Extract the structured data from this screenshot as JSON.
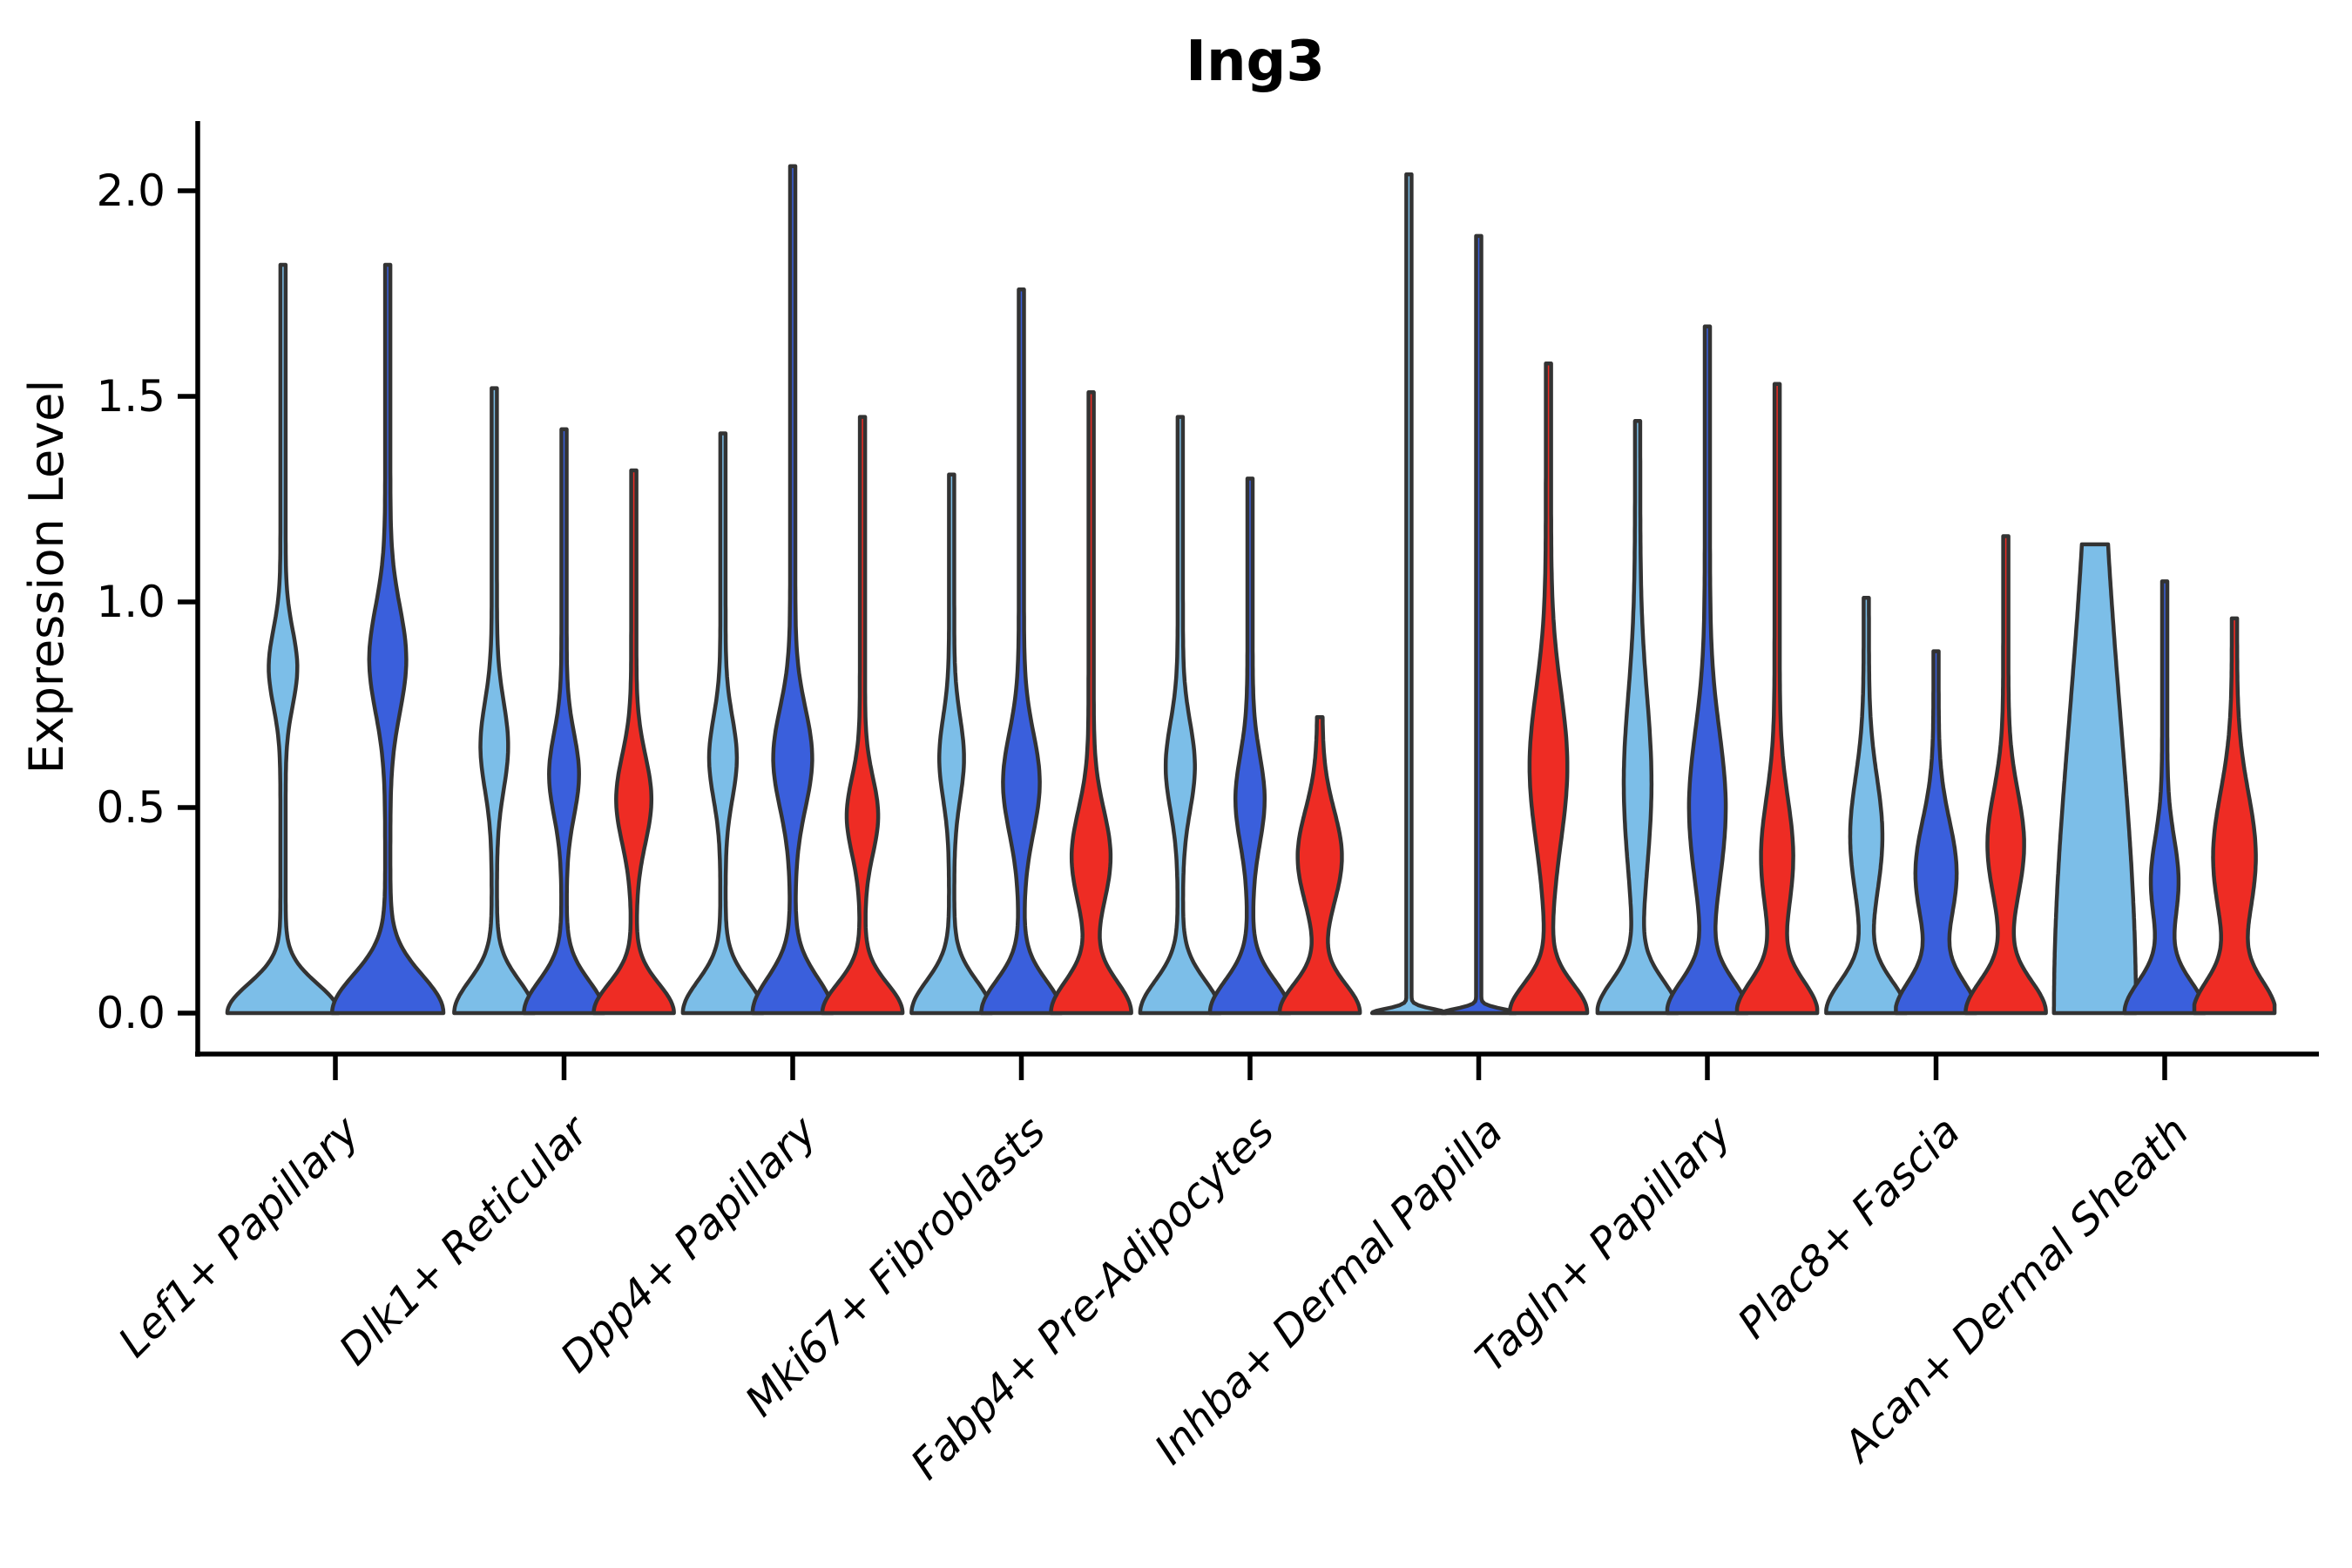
{
  "figure": {
    "title": "Ing3",
    "ylabel": "Expression Level"
  },
  "chart_data": {
    "type": "violin",
    "title": "Ing3",
    "xlabel": "",
    "ylabel": "Expression Level",
    "ylim": [
      -0.09,
      2.17
    ],
    "yticks": [
      0.0,
      0.5,
      1.0,
      1.5,
      2.0
    ],
    "ytick_labels": [
      "0.0",
      "0.5",
      "1.0",
      "1.5",
      "2.0"
    ],
    "grid": false,
    "legend": "none",
    "outline_color": "#333333",
    "series_colors": {
      "lightblue": "#7CBEE8",
      "blue": "#3A5FDC",
      "red": "#EE2C24"
    },
    "categories": [
      "Lef1+ Papillary",
      "Dlk1+ Reticular",
      "Dpp4+ Papillary",
      "Mki67+ Fibroblasts",
      "Fabp4+ Pre-Adipocytes",
      "Inhba+ Dermal Papilla",
      "Tagln+ Papillary",
      "Plac8+ Fascia",
      "Acan+ Dermal Sheath"
    ],
    "violin_description": "Each violin: max = top of expression spike; bulge = mid-density lobe (center value, sigma, relative width); base = density mass at 0 (sigma, relative width); offset/halfwidth in category units",
    "groups": [
      {
        "category": "Lef1+ Papillary",
        "violins": [
          {
            "color": "lightblue",
            "offset": -0.229,
            "halfwidth": 0.232,
            "max": 1.82,
            "base": {
              "s": 0.1,
              "w": 1.0
            },
            "bulge": {
              "c": 0.84,
              "s": 0.13,
              "w": 0.22
            }
          },
          {
            "color": "blue",
            "offset": 0.229,
            "halfwidth": 0.232,
            "max": 1.82,
            "base": {
              "s": 0.13,
              "w": 1.0
            },
            "bulge": {
              "c": 0.86,
              "s": 0.18,
              "w": 0.3
            }
          }
        ]
      },
      {
        "category": "Dlk1+ Reticular",
        "violins": [
          {
            "color": "lightblue",
            "offset": -0.305,
            "halfwidth": 0.164,
            "max": 1.52,
            "base": {
              "s": 0.11,
              "w": 1.0
            },
            "bulge": {
              "c": 0.65,
              "s": 0.15,
              "w": 0.3
            }
          },
          {
            "color": "blue",
            "offset": 0.0,
            "halfwidth": 0.164,
            "max": 1.42,
            "base": {
              "s": 0.11,
              "w": 1.0
            },
            "bulge": {
              "c": 0.58,
              "s": 0.14,
              "w": 0.33
            }
          },
          {
            "color": "red",
            "offset": 0.305,
            "halfwidth": 0.164,
            "max": 1.32,
            "base": {
              "s": 0.1,
              "w": 1.0
            },
            "bulge": {
              "c": 0.52,
              "s": 0.15,
              "w": 0.4
            }
          }
        ]
      },
      {
        "category": "Dpp4+ Papillary",
        "violins": [
          {
            "color": "lightblue",
            "offset": -0.305,
            "halfwidth": 0.164,
            "max": 1.41,
            "base": {
              "s": 0.11,
              "w": 1.0
            },
            "bulge": {
              "c": 0.62,
              "s": 0.14,
              "w": 0.3
            }
          },
          {
            "color": "blue",
            "offset": 0.0,
            "halfwidth": 0.164,
            "max": 2.06,
            "base": {
              "s": 0.12,
              "w": 1.0
            },
            "bulge": {
              "c": 0.62,
              "s": 0.17,
              "w": 0.45
            }
          },
          {
            "color": "red",
            "offset": 0.305,
            "halfwidth": 0.164,
            "max": 1.45,
            "base": {
              "s": 0.1,
              "w": 1.0
            },
            "bulge": {
              "c": 0.48,
              "s": 0.13,
              "w": 0.35
            }
          }
        ]
      },
      {
        "category": "Mki67+ Fibroblasts",
        "violins": [
          {
            "color": "lightblue",
            "offset": -0.305,
            "halfwidth": 0.164,
            "max": 1.31,
            "base": {
              "s": 0.11,
              "w": 1.0
            },
            "bulge": {
              "c": 0.62,
              "s": 0.14,
              "w": 0.26
            }
          },
          {
            "color": "blue",
            "offset": 0.0,
            "halfwidth": 0.164,
            "max": 1.76,
            "base": {
              "s": 0.11,
              "w": 1.0
            },
            "bulge": {
              "c": 0.56,
              "s": 0.17,
              "w": 0.42
            }
          },
          {
            "color": "red",
            "offset": 0.305,
            "halfwidth": 0.164,
            "max": 1.51,
            "base": {
              "s": 0.11,
              "w": 1.0
            },
            "bulge": {
              "c": 0.38,
              "s": 0.16,
              "w": 0.45
            }
          }
        ]
      },
      {
        "category": "Fabp4+ Pre-Adipocytes",
        "violins": [
          {
            "color": "lightblue",
            "offset": -0.305,
            "halfwidth": 0.164,
            "max": 1.45,
            "base": {
              "s": 0.11,
              "w": 1.0
            },
            "bulge": {
              "c": 0.6,
              "s": 0.15,
              "w": 0.32
            }
          },
          {
            "color": "blue",
            "offset": 0.0,
            "halfwidth": 0.164,
            "max": 1.3,
            "base": {
              "s": 0.11,
              "w": 1.0
            },
            "bulge": {
              "c": 0.52,
              "s": 0.15,
              "w": 0.32
            }
          },
          {
            "color": "red",
            "offset": 0.305,
            "halfwidth": 0.164,
            "max": 0.72,
            "base": {
              "s": 0.1,
              "w": 1.0
            },
            "bulge": {
              "c": 0.38,
              "s": 0.16,
              "w": 0.52
            }
          }
        ]
      },
      {
        "category": "Inhba+ Dermal Papilla",
        "violins": [
          {
            "color": "lightblue",
            "offset": -0.305,
            "halfwidth": 0.15,
            "max": 2.04,
            "base": {
              "s": 0.015,
              "w": 1.0
            },
            "bulge": {
              "c": 0.0,
              "s": 0.0,
              "w": 0.0
            }
          },
          {
            "color": "blue",
            "offset": 0.0,
            "halfwidth": 0.15,
            "max": 1.89,
            "base": {
              "s": 0.015,
              "w": 1.0
            },
            "bulge": {
              "c": 0.0,
              "s": 0.0,
              "w": 0.0
            }
          },
          {
            "color": "red",
            "offset": 0.305,
            "halfwidth": 0.158,
            "max": 1.58,
            "base": {
              "s": 0.1,
              "w": 1.0
            },
            "bulge": {
              "c": 0.6,
              "s": 0.26,
              "w": 0.45
            }
          }
        ]
      },
      {
        "category": "Tagln+ Papillary",
        "violins": [
          {
            "color": "lightblue",
            "offset": -0.305,
            "halfwidth": 0.164,
            "max": 1.44,
            "base": {
              "s": 0.11,
              "w": 1.0
            },
            "bulge": {
              "c": 0.56,
              "s": 0.3,
              "w": 0.3
            }
          },
          {
            "color": "blue",
            "offset": 0.0,
            "halfwidth": 0.164,
            "max": 1.67,
            "base": {
              "s": 0.11,
              "w": 1.0
            },
            "bulge": {
              "c": 0.5,
              "s": 0.26,
              "w": 0.42
            }
          },
          {
            "color": "red",
            "offset": 0.305,
            "halfwidth": 0.164,
            "max": 1.53,
            "base": {
              "s": 0.11,
              "w": 1.0
            },
            "bulge": {
              "c": 0.38,
              "s": 0.2,
              "w": 0.36
            }
          }
        ]
      },
      {
        "category": "Plac8+ Fascia",
        "violins": [
          {
            "color": "lightblue",
            "offset": -0.305,
            "halfwidth": 0.164,
            "max": 1.01,
            "base": {
              "s": 0.11,
              "w": 1.0
            },
            "bulge": {
              "c": 0.43,
              "s": 0.2,
              "w": 0.36
            }
          },
          {
            "color": "blue",
            "offset": 0.0,
            "halfwidth": 0.164,
            "max": 0.88,
            "base": {
              "s": 0.11,
              "w": 1.0
            },
            "bulge": {
              "c": 0.34,
              "s": 0.18,
              "w": 0.48
            }
          },
          {
            "color": "red",
            "offset": 0.305,
            "halfwidth": 0.164,
            "max": 1.16,
            "base": {
              "s": 0.11,
              "w": 1.0
            },
            "bulge": {
              "c": 0.41,
              "s": 0.18,
              "w": 0.42
            }
          }
        ]
      },
      {
        "category": "Acan+ Dermal Sheath",
        "violins": [
          {
            "color": "lightblue",
            "offset": -0.305,
            "halfwidth": 0.168,
            "max": 1.14,
            "base": {
              "s": 0.1,
              "w": 0.0
            },
            "bulge": {
              "c": 0.0,
              "s": 1.0,
              "w": 1.0
            }
          },
          {
            "color": "blue",
            "offset": 0.0,
            "halfwidth": 0.164,
            "max": 1.05,
            "base": {
              "s": 0.11,
              "w": 1.0
            },
            "bulge": {
              "c": 0.32,
              "s": 0.15,
              "w": 0.3
            }
          },
          {
            "color": "red",
            "offset": 0.305,
            "halfwidth": 0.164,
            "max": 0.96,
            "base": {
              "s": 0.11,
              "w": 1.0
            },
            "bulge": {
              "c": 0.38,
              "s": 0.22,
              "w": 0.5
            }
          }
        ]
      }
    ]
  }
}
